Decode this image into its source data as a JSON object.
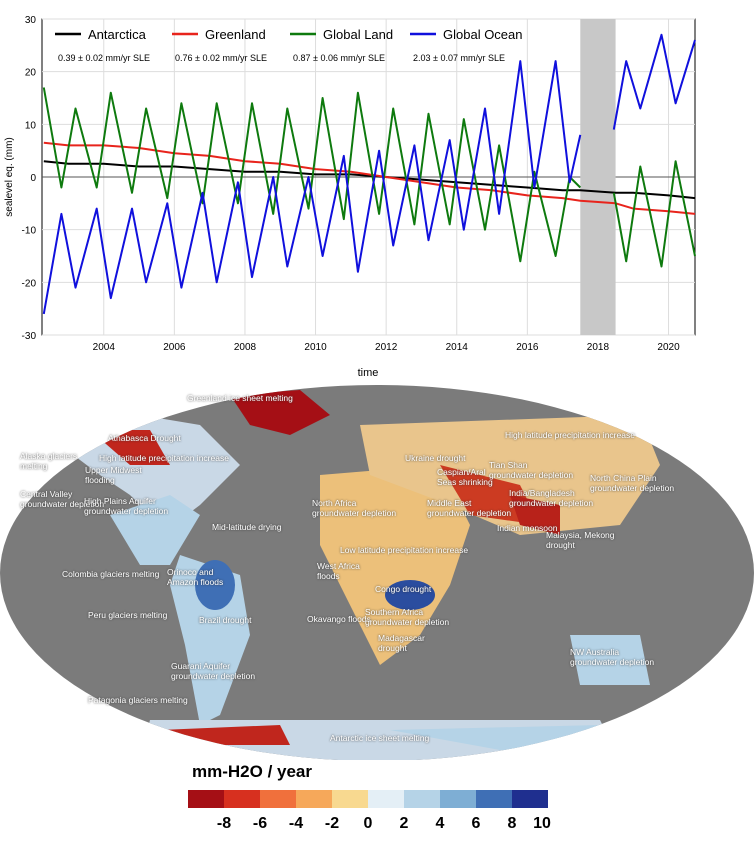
{
  "chart_data": {
    "type": "line",
    "xlabel": "time",
    "ylabel": "sealevel eq. (mm)",
    "xlim": [
      2002.25,
      2020.75
    ],
    "ylim": [
      -30,
      30
    ],
    "xticks": [
      2004,
      2006,
      2008,
      2010,
      2012,
      2014,
      2016,
      2018,
      2020
    ],
    "yticks": [
      -30,
      -20,
      -10,
      0,
      10,
      20,
      30
    ],
    "gap_shaded": [
      2017.5,
      2018.5
    ],
    "legend_position": "top",
    "series": [
      {
        "name": "Antarctica",
        "color": "#000000",
        "rate": "0.39 ± 0.02 mm/yr SLE",
        "x": [
          2002.3,
          2003,
          2004,
          2005,
          2006,
          2007,
          2008,
          2009,
          2010,
          2011,
          2012,
          2013,
          2014,
          2015,
          2016,
          2017,
          2017.5,
          2018.5,
          2019,
          2020,
          2020.75
        ],
        "y": [
          3,
          2.5,
          2.5,
          2,
          2,
          1.5,
          1,
          1,
          0.5,
          0.5,
          0,
          -0.5,
          -1,
          -1.5,
          -2,
          -2.5,
          -2.5,
          -3,
          -3,
          -3.5,
          -4
        ]
      },
      {
        "name": "Greenland",
        "color": "#e8241c",
        "rate": "0.76 ± 0.02 mm/yr SLE",
        "x": [
          2002.3,
          2003,
          2004,
          2005,
          2006,
          2007,
          2008,
          2009,
          2010,
          2011,
          2012,
          2013,
          2014,
          2015,
          2016,
          2017,
          2017.5,
          2018.5,
          2019,
          2020,
          2020.75
        ],
        "y": [
          6.5,
          6,
          6,
          5.5,
          4.5,
          4,
          3,
          2.5,
          1.5,
          1,
          0,
          -1,
          -2,
          -2.5,
          -3.5,
          -4,
          -4.5,
          -5,
          -6,
          -6.5,
          -7
        ]
      },
      {
        "name": "Global Land",
        "color": "#0e7a0e",
        "rate": "0.87 ± 0.06 mm/yr SLE",
        "x": [
          2002.3,
          2002.8,
          2003.2,
          2003.8,
          2004.2,
          2004.8,
          2005.2,
          2005.8,
          2006.2,
          2006.8,
          2007.2,
          2007.8,
          2008.2,
          2008.8,
          2009.2,
          2009.8,
          2010.2,
          2010.8,
          2011.2,
          2011.8,
          2012.2,
          2012.8,
          2013.2,
          2013.8,
          2014.2,
          2014.8,
          2015.2,
          2015.8,
          2016.2,
          2016.8,
          2017.2,
          2017.5,
          null,
          2018.45,
          2018.8,
          2019.2,
          2019.8,
          2020.2,
          2020.75
        ],
        "y": [
          17,
          -2,
          13,
          -2,
          16,
          -3,
          13,
          -4,
          14,
          -5,
          14,
          -5,
          14,
          -7,
          13,
          -6,
          15,
          -8,
          16,
          -7,
          13,
          -9,
          12,
          -9,
          11,
          -10,
          6,
          -16,
          1,
          -15,
          0,
          -2,
          null,
          -3,
          -16,
          2,
          -17,
          3,
          -15
        ]
      },
      {
        "name": "Global Ocean",
        "color": "#1010dd",
        "rate": "2.03 ± 0.07 mm/yr SLE",
        "x": [
          2002.3,
          2002.8,
          2003.2,
          2003.8,
          2004.2,
          2004.8,
          2005.2,
          2005.8,
          2006.2,
          2006.8,
          2007.2,
          2007.8,
          2008.2,
          2008.8,
          2009.2,
          2009.8,
          2010.2,
          2010.8,
          2011.2,
          2011.8,
          2012.2,
          2012.8,
          2013.2,
          2013.8,
          2014.2,
          2014.8,
          2015.2,
          2015.8,
          2016.2,
          2016.8,
          2017.2,
          2017.5,
          null,
          2018.45,
          2018.8,
          2019.2,
          2019.8,
          2020.2,
          2020.75
        ],
        "y": [
          -26,
          -7,
          -21,
          -6,
          -23,
          -6,
          -20,
          -5,
          -21,
          -3,
          -20,
          -1,
          -19,
          0,
          -17,
          0,
          -15,
          4,
          -18,
          5,
          -13,
          6,
          -12,
          7,
          -10,
          13,
          -7,
          22,
          -2,
          22,
          -1,
          8,
          null,
          9,
          22,
          13,
          27,
          14,
          26
        ]
      }
    ]
  },
  "map": {
    "labels": [
      "Greenland ice sheet melting",
      "Athabasca Drought",
      "Alaska glaciers\nmelting",
      "High latitude precipitation increase",
      "Upper Midwest\nflooding",
      "Central Valley\ngroundwater depletion",
      "High Plains Aquifer\ngroundwater depletion",
      "North Africa\ngroundwater depletion",
      "Mid-latitude drying",
      "Low latitude precipitation increase",
      "West Africa\nfloods",
      "Colombia glaciers melting",
      "Orinoco and\nAmazon floods",
      "Congo drought",
      "Peru glaciers melting",
      "Brazil drought",
      "Okavango floods",
      "Southern Africa\ngroundwater depletion",
      "Madagascar\ndrought",
      "Guarani Aquifer\ngroundwater depletion",
      "Patagonia glaciers melting",
      "Antarctic ice sheet melting",
      "Ukraine drought",
      "High latitude precipitation increase",
      "Tian Shan\ngroundwater depletion",
      "Caspian/Aral\nSeas shrinking",
      "North China Plain\ngroundwater depletion",
      "India/Bangladesh\ngroundwater depletion",
      "Middle East\ngroundwater depletion",
      "Indian monsoon",
      "Malaysia, Mekong\ndrought",
      "NW Australia\ngroundwater depletion"
    ]
  },
  "colorbar": {
    "title": "mm-H2O / year",
    "ticks": [
      "-8",
      "-6",
      "-4",
      "-2",
      "0",
      "2",
      "4",
      "6",
      "8",
      "10"
    ],
    "colors": [
      "#a50f15",
      "#d7301f",
      "#f0703c",
      "#f6a85a",
      "#f8d990",
      "#e4eff6",
      "#b5d3e7",
      "#7eaed4",
      "#3f6fb5",
      "#1f2f8f"
    ]
  }
}
